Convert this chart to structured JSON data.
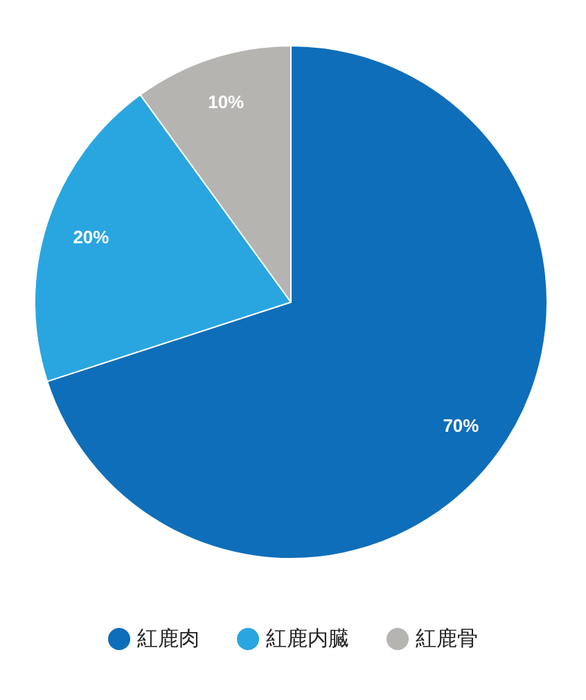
{
  "chart_data": {
    "type": "pie",
    "categories": [
      "紅鹿肉",
      "紅鹿内臓",
      "紅鹿骨"
    ],
    "values": [
      70,
      20,
      10
    ],
    "colors": [
      "#0f6eb9",
      "#29a6e0",
      "#b5b4b1"
    ],
    "value_labels": [
      "70%",
      "20%",
      "10%"
    ],
    "legend": "bottom"
  }
}
